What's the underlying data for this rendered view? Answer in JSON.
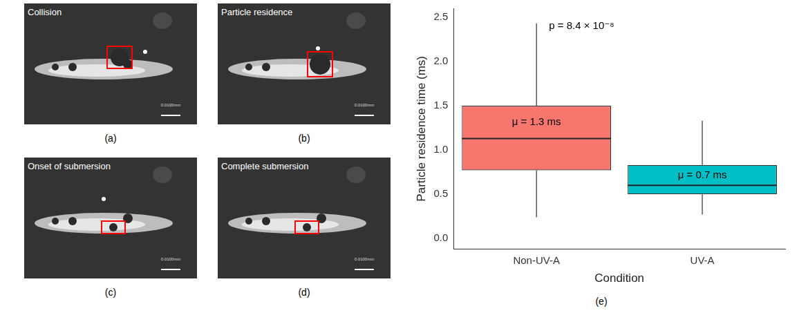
{
  "images": [
    {
      "letter": "(a)",
      "title": "Collision",
      "scale_label": "0.0100mm"
    },
    {
      "letter": "(b)",
      "title": "Particle residence",
      "scale_label": "0.0100mm"
    },
    {
      "letter": "(c)",
      "title": "Onset of submersion",
      "scale_label": "0.0100mm"
    },
    {
      "letter": "(d)",
      "title": "Complete submersion",
      "scale_label": "0.0100mm"
    }
  ],
  "chart_data": {
    "type": "box",
    "letter": "(e)",
    "x_label": "Condition",
    "y_label": "Particle residence time (ms)",
    "categories": [
      "Non-UV-A",
      "UV-A"
    ],
    "whisker_low": [
      0.24,
      0.27
    ],
    "q1": [
      0.77,
      0.5
    ],
    "median": [
      1.13,
      0.6
    ],
    "q3": [
      1.5,
      0.83
    ],
    "whisker_high": [
      2.43,
      1.33
    ],
    "colors": [
      "#F8766D",
      "#00BFC4"
    ],
    "mean_labels": [
      "μ = 1.3 ms",
      "μ = 0.7 ms"
    ],
    "annotation": "p = 8.4 × 10⁻⁸",
    "ylim": [
      -0.12,
      2.6
    ],
    "yticks": [
      {
        "value": 0,
        "label": "0.0"
      },
      0.5,
      {
        "value": 1,
        "label": "1.0"
      },
      1.5,
      {
        "value": 2,
        "label": "2.0"
      },
      2.5
    ],
    "grid": false
  }
}
